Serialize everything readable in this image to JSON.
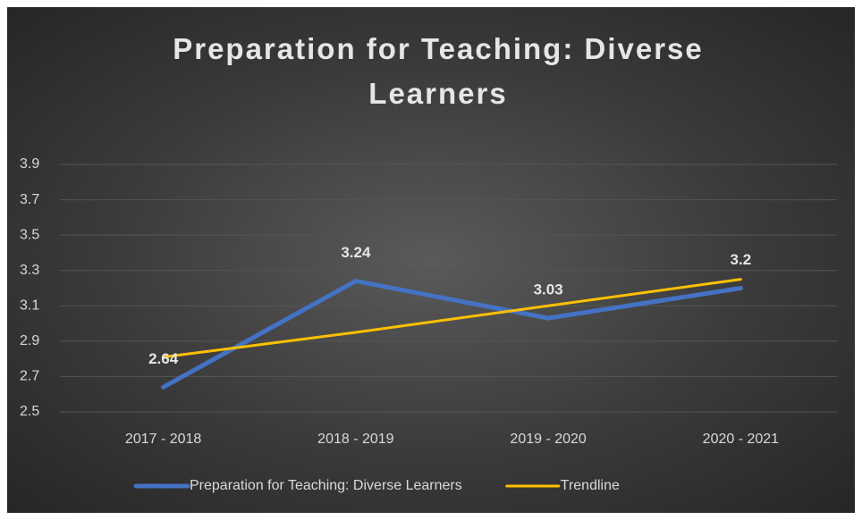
{
  "chart_data": {
    "type": "line",
    "title": "Preparation for Teaching: Diverse Learners",
    "categories": [
      "2017 - 2018",
      "2018 - 2019",
      "2019 - 2020",
      "2020 - 2021"
    ],
    "series": [
      {
        "name": "Preparation for Teaching: Diverse Learners",
        "color": "#4472c4",
        "values": [
          2.64,
          3.24,
          3.03,
          3.2
        ],
        "data_labels": true
      },
      {
        "name": "Trendline",
        "color": "#ffc000",
        "values": [
          2.81,
          2.95,
          3.1,
          3.25
        ],
        "data_labels": false
      }
    ],
    "ylim": [
      2.5,
      3.9
    ],
    "yticks": [
      2.5,
      2.7,
      2.9,
      3.1,
      3.3,
      3.5,
      3.7,
      3.9
    ],
    "grid": true,
    "legend": "bottom"
  }
}
